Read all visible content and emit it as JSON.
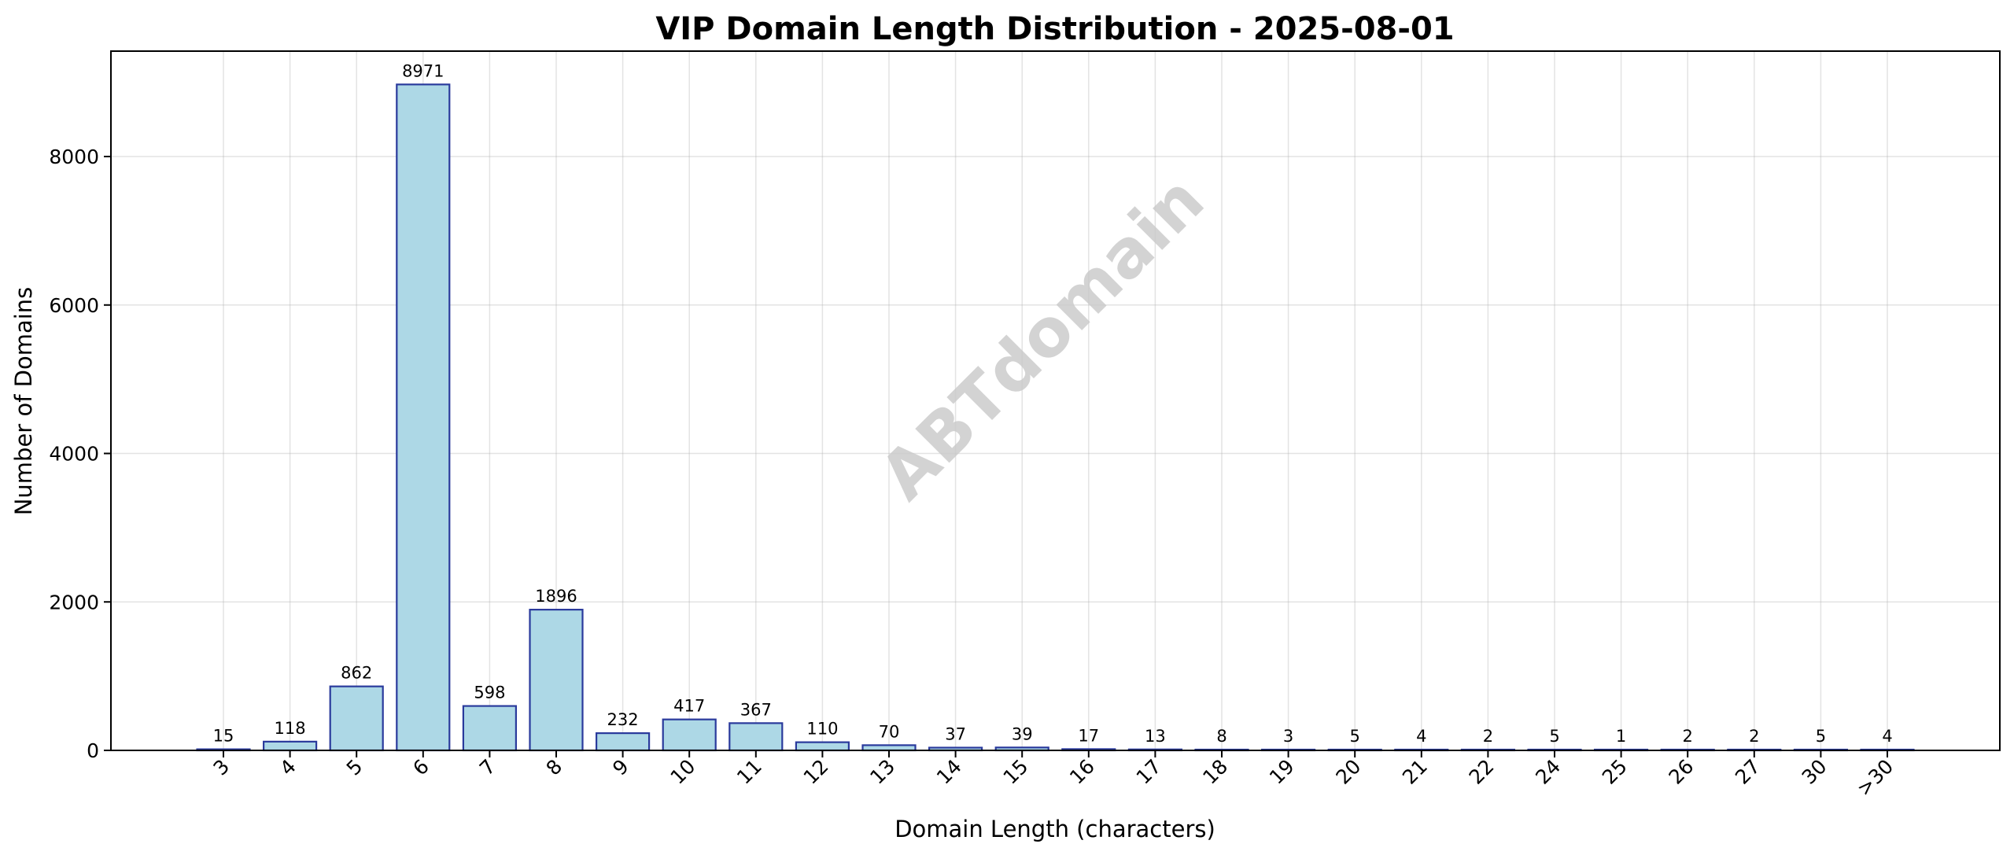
{
  "watermark": "ABTdomain",
  "chart_data": {
    "type": "bar",
    "title": "VIP Domain Length Distribution - 2025-08-01",
    "xlabel": "Domain Length (characters)",
    "ylabel": "Number of Domains",
    "categories": [
      "3",
      "4",
      "5",
      "6",
      "7",
      "8",
      "9",
      "10",
      "11",
      "12",
      "13",
      "14",
      "15",
      "16",
      "17",
      "18",
      "19",
      "20",
      "21",
      "22",
      "24",
      "25",
      "26",
      "27",
      "30",
      ">30"
    ],
    "values": [
      15,
      118,
      862,
      8971,
      598,
      1896,
      232,
      417,
      367,
      110,
      70,
      37,
      39,
      17,
      13,
      8,
      3,
      5,
      4,
      2,
      5,
      1,
      2,
      2,
      5,
      4
    ],
    "ylim": [
      0,
      9420
    ],
    "yticks": [
      0,
      2000,
      4000,
      6000,
      8000
    ],
    "grid": true,
    "colors": {
      "bar_fill": "#add8e6",
      "bar_edge": "#2a3a9c"
    }
  }
}
